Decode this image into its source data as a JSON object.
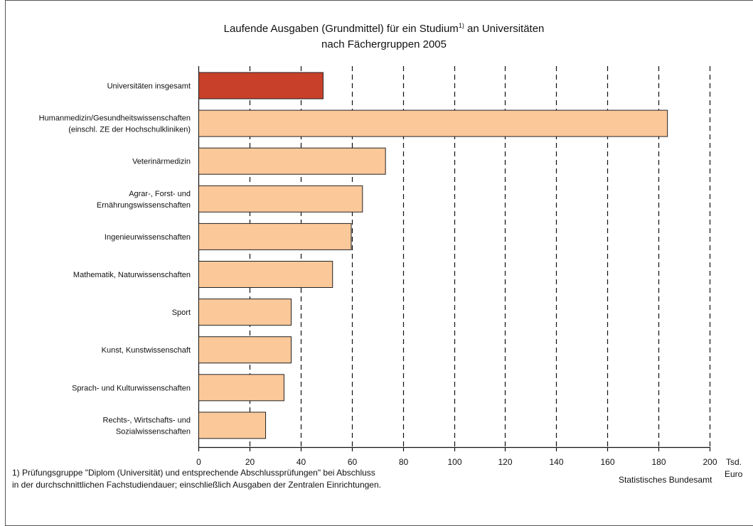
{
  "chart_data": {
    "type": "bar",
    "orientation": "horizontal",
    "title_line1_pre": "Laufende Ausgaben (Grundmittel) für ein Studium",
    "title_footnote_marker": "1)",
    "title_line1_post": " an Universitäten",
    "title_line2": "nach Fächergruppen 2005",
    "xlabel_line1": "Tsd.",
    "xlabel_line2": "Euro",
    "xlim": [
      0,
      200
    ],
    "xticks": [
      0,
      20,
      40,
      60,
      80,
      100,
      120,
      140,
      160,
      180,
      200
    ],
    "grid": "vertical dashed",
    "categories": [
      [
        "Universitäten insgesamt"
      ],
      [
        "Humanmedizin/Gesundheitswissenschaften",
        "(einschl. ZE der Hochschulkliniken)"
      ],
      [
        "Veterinärmedizin"
      ],
      [
        "Agrar-, Forst- und",
        "Ernährungswissenschaften"
      ],
      [
        "Ingenieurwissenschaften"
      ],
      [
        "Mathematik, Naturwissenschaften"
      ],
      [
        "Sport"
      ],
      [
        "Kunst, Kunstwissenschaft"
      ],
      [
        "Sprach- und Kulturwissenschaften"
      ],
      [
        "Rechts-, Wirtschafts- und",
        "Sozialwissenschaften"
      ]
    ],
    "values": [
      48.8,
      183.5,
      73.2,
      64.2,
      59.8,
      52.5,
      36.3,
      36.3,
      33.5,
      26.3
    ],
    "colors": {
      "total": "#c8402a",
      "group": "#fbc89a",
      "bar_border": "#222222",
      "grid": "#111111"
    }
  },
  "footnote": {
    "line1": "1) Prüfungsgruppe \"Diplom (Universität) und entsprechende Abschlussprüfungen\" bei Abschluss",
    "line2": "in der durchschnittlichen Fachstudiendauer; einschließlich Ausgaben der Zentralen Einrichtungen."
  },
  "source": "Statistisches Bundesamt"
}
